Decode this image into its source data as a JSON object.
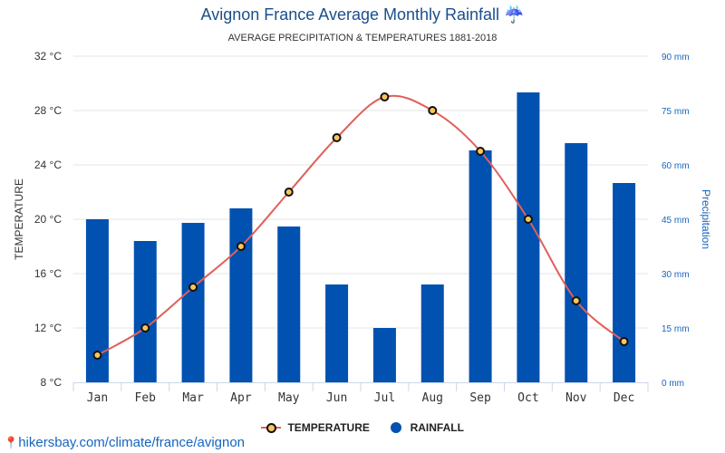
{
  "header": {
    "title": "Avignon France Average Monthly Rainfall ☔",
    "subtitle": "AVERAGE PRECIPITATION & TEMPERATURES 1881-2018"
  },
  "footer": {
    "credit": "hikersbay.com/climate/france/avignon"
  },
  "legend": {
    "temperature": "TEMPERATURE",
    "rainfall": "RAINFALL"
  },
  "colors": {
    "bar": "#0051b0",
    "line": "#e0605a",
    "marker": "#f9c55d",
    "title": "#1a4f8b"
  },
  "chart_data": {
    "type": "bar",
    "title": "Avignon France Average Monthly Rainfall",
    "subtitle": "AVERAGE PRECIPITATION & TEMPERATURES 1881-2018",
    "categories": [
      "Jan",
      "Feb",
      "Mar",
      "Apr",
      "May",
      "Jun",
      "Jul",
      "Aug",
      "Sep",
      "Oct",
      "Nov",
      "Dec"
    ],
    "series": [
      {
        "name": "RAINFALL",
        "type": "bar",
        "axis": "right",
        "unit": "mm",
        "values": [
          45,
          39,
          44,
          48,
          43,
          27,
          15,
          27,
          64,
          80,
          66,
          55
        ]
      },
      {
        "name": "TEMPERATURE",
        "type": "line",
        "axis": "left",
        "unit": "°C",
        "values": [
          10,
          12,
          15,
          18,
          22,
          26,
          29,
          28,
          25,
          20,
          14,
          11
        ]
      }
    ],
    "ylabel": "TEMPERATURE",
    "ylabel_right": "Precipitation",
    "ylim": [
      8,
      32
    ],
    "ylim_right": [
      0,
      90
    ],
    "yticks": [
      "8 °C",
      "12 °C",
      "16 °C",
      "20 °C",
      "24 °C",
      "28 °C",
      "32 °C"
    ],
    "yticks_right": [
      "0 mm",
      "15 mm",
      "30 mm",
      "45 mm",
      "60 mm",
      "75 mm",
      "90 mm"
    ],
    "grid": true,
    "legend_position": "bottom-center"
  }
}
